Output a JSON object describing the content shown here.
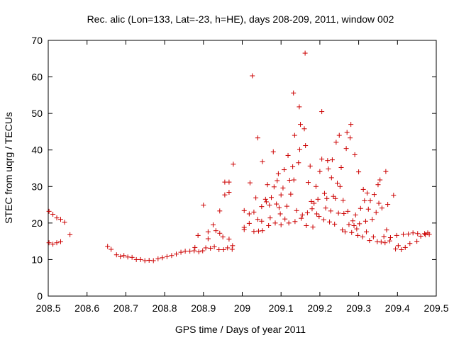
{
  "chart_data": {
    "type": "scatter",
    "title": "Rec. alic (Lon=133, Lat=-23, h=HE), days 208-209, 2011, window 002",
    "xlabel": "GPS time / Days of year 2011",
    "ylabel": "STEC from uqrg / TECUs",
    "xlim": [
      208.5,
      209.5
    ],
    "ylim": [
      0,
      70
    ],
    "xticks": [
      208.5,
      208.6,
      208.7,
      208.8,
      208.9,
      209.0,
      209.1,
      209.2,
      209.3,
      209.4,
      209.5
    ],
    "xtick_labels": [
      "208.5",
      "208.6",
      "208.7",
      "208.8",
      "208.9",
      "209",
      "209.1",
      "209.2",
      "209.3",
      "209.4",
      "209.5"
    ],
    "yticks": [
      0,
      10,
      20,
      30,
      40,
      50,
      60,
      70
    ],
    "ytick_labels": [
      "0",
      "10",
      "20",
      "30",
      "40",
      "50",
      "60",
      "70"
    ],
    "marker": "+",
    "color": "#cc0000",
    "grid": false,
    "series": [
      {
        "name": "STEC",
        "points": [
          [
            208.502,
            23.2
          ],
          [
            208.512,
            22.4
          ],
          [
            208.522,
            21.4
          ],
          [
            208.532,
            21.0
          ],
          [
            208.542,
            20.2
          ],
          [
            208.556,
            16.8
          ],
          [
            208.502,
            14.6
          ],
          [
            208.512,
            14.2
          ],
          [
            208.522,
            14.6
          ],
          [
            208.532,
            14.9
          ],
          [
            208.653,
            13.6
          ],
          [
            208.662,
            12.8
          ],
          [
            208.676,
            11.3
          ],
          [
            208.686,
            10.8
          ],
          [
            208.695,
            11.1
          ],
          [
            208.705,
            10.7
          ],
          [
            208.716,
            10.6
          ],
          [
            208.727,
            10.0
          ],
          [
            208.738,
            10.0
          ],
          [
            208.749,
            9.7
          ],
          [
            208.76,
            9.8
          ],
          [
            208.771,
            9.7
          ],
          [
            208.783,
            10.2
          ],
          [
            208.794,
            10.5
          ],
          [
            208.806,
            10.8
          ],
          [
            208.818,
            11.1
          ],
          [
            208.83,
            11.5
          ],
          [
            208.842,
            12.0
          ],
          [
            208.853,
            12.3
          ],
          [
            208.865,
            12.3
          ],
          [
            208.876,
            12.4
          ],
          [
            208.878,
            13.3
          ],
          [
            208.888,
            12.1
          ],
          [
            208.898,
            12.4
          ],
          [
            208.906,
            13.2
          ],
          [
            208.918,
            13.1
          ],
          [
            208.928,
            13.5
          ],
          [
            208.94,
            12.7
          ],
          [
            208.952,
            12.7
          ],
          [
            208.962,
            13.2
          ],
          [
            208.974,
            12.8
          ],
          [
            208.975,
            13.8
          ],
          [
            208.886,
            16.6
          ],
          [
            208.9,
            24.9
          ],
          [
            208.912,
            15.7
          ],
          [
            208.912,
            17.6
          ],
          [
            208.925,
            19.5
          ],
          [
            208.932,
            17.9
          ],
          [
            208.942,
            17.2
          ],
          [
            208.942,
            23.3
          ],
          [
            208.95,
            16.2
          ],
          [
            208.955,
            27.7
          ],
          [
            208.955,
            31.2
          ],
          [
            208.966,
            31.2
          ],
          [
            208.966,
            28.4
          ],
          [
            208.966,
            15.6
          ],
          [
            208.977,
            36.1
          ],
          [
            209.005,
            18.2
          ],
          [
            209.005,
            18.8
          ],
          [
            209.005,
            23.4
          ],
          [
            209.018,
            22.5
          ],
          [
            209.018,
            19.9
          ],
          [
            209.02,
            31.0
          ],
          [
            209.026,
            60.3
          ],
          [
            209.03,
            17.7
          ],
          [
            209.03,
            23.0
          ],
          [
            209.035,
            26.9
          ],
          [
            209.04,
            43.3
          ],
          [
            209.04,
            21.0
          ],
          [
            209.042,
            17.8
          ],
          [
            209.05,
            24.5
          ],
          [
            209.05,
            20.5
          ],
          [
            209.052,
            36.8
          ],
          [
            209.052,
            17.9
          ],
          [
            209.06,
            26.5
          ],
          [
            209.062,
            25.8
          ],
          [
            209.065,
            30.5
          ],
          [
            209.068,
            19.3
          ],
          [
            209.07,
            24.9
          ],
          [
            209.072,
            21.4
          ],
          [
            209.075,
            27.0
          ],
          [
            209.08,
            39.5
          ],
          [
            209.082,
            29.9
          ],
          [
            209.085,
            20.0
          ],
          [
            209.088,
            25.2
          ],
          [
            209.09,
            31.6
          ],
          [
            209.093,
            33.5
          ],
          [
            209.095,
            24.2
          ],
          [
            209.098,
            22.5
          ],
          [
            209.1,
            27.7
          ],
          [
            209.1,
            19.5
          ],
          [
            209.105,
            29.6
          ],
          [
            209.108,
            34.6
          ],
          [
            209.11,
            21.1
          ],
          [
            209.115,
            24.6
          ],
          [
            209.118,
            38.5
          ],
          [
            209.12,
            20.0
          ],
          [
            209.122,
            31.7
          ],
          [
            209.125,
            27.9
          ],
          [
            209.13,
            35.4
          ],
          [
            209.132,
            55.6
          ],
          [
            209.133,
            31.8
          ],
          [
            209.135,
            44.0
          ],
          [
            209.136,
            20.4
          ],
          [
            209.14,
            23.4
          ],
          [
            209.145,
            36.5
          ],
          [
            209.147,
            51.8
          ],
          [
            209.148,
            40.1
          ],
          [
            209.15,
            47.0
          ],
          [
            209.152,
            21.3
          ],
          [
            209.155,
            22.2
          ],
          [
            209.16,
            45.8
          ],
          [
            209.162,
            66.5
          ],
          [
            209.163,
            41.2
          ],
          [
            209.165,
            19.3
          ],
          [
            209.168,
            22.8
          ],
          [
            209.17,
            31.1
          ],
          [
            209.175,
            35.6
          ],
          [
            209.178,
            25.9
          ],
          [
            209.18,
            23.9
          ],
          [
            209.182,
            18.9
          ],
          [
            209.185,
            25.4
          ],
          [
            209.19,
            30.0
          ],
          [
            209.192,
            22.5
          ],
          [
            209.195,
            26.5
          ],
          [
            209.198,
            21.8
          ],
          [
            209.2,
            34.1
          ],
          [
            209.205,
            50.5
          ],
          [
            209.205,
            37.5
          ],
          [
            209.21,
            20.9
          ],
          [
            209.212,
            28.1
          ],
          [
            209.215,
            24.1
          ],
          [
            209.218,
            26.7
          ],
          [
            209.22,
            37.1
          ],
          [
            209.222,
            34.8
          ],
          [
            209.225,
            20.3
          ],
          [
            209.228,
            23.3
          ],
          [
            209.23,
            32.4
          ],
          [
            209.232,
            37.3
          ],
          [
            209.235,
            27.3
          ],
          [
            209.238,
            19.7
          ],
          [
            209.24,
            26.7
          ],
          [
            209.242,
            42.1
          ],
          [
            209.245,
            30.9
          ],
          [
            209.248,
            22.7
          ],
          [
            209.25,
            44.0
          ],
          [
            209.252,
            30.0
          ],
          [
            209.255,
            35.2
          ],
          [
            209.258,
            18.1
          ],
          [
            209.26,
            26.2
          ],
          [
            209.262,
            22.6
          ],
          [
            209.265,
            17.6
          ],
          [
            209.268,
            40.4
          ],
          [
            209.27,
            44.8
          ],
          [
            209.272,
            23.2
          ],
          [
            209.275,
            19.6
          ],
          [
            209.278,
            43.3
          ],
          [
            209.28,
            47.0
          ],
          [
            209.282,
            17.4
          ],
          [
            209.285,
            20.6
          ],
          [
            209.288,
            19.3
          ],
          [
            209.29,
            38.7
          ],
          [
            209.292,
            22.2
          ],
          [
            209.295,
            18.4
          ],
          [
            209.298,
            16.6
          ],
          [
            209.3,
            34.0
          ],
          [
            209.302,
            19.8
          ],
          [
            209.305,
            24.0
          ],
          [
            209.31,
            16.2
          ],
          [
            209.312,
            29.2
          ],
          [
            209.315,
            26.1
          ],
          [
            209.318,
            20.5
          ],
          [
            209.32,
            17.6
          ],
          [
            209.322,
            28.2
          ],
          [
            209.325,
            23.8
          ],
          [
            209.328,
            15.2
          ],
          [
            209.33,
            26.1
          ],
          [
            209.335,
            21.0
          ],
          [
            209.338,
            16.2
          ],
          [
            209.34,
            27.8
          ],
          [
            209.345,
            22.9
          ],
          [
            209.348,
            14.9
          ],
          [
            209.35,
            30.5
          ],
          [
            209.352,
            25.4
          ],
          [
            209.355,
            31.8
          ],
          [
            209.358,
            14.8
          ],
          [
            209.36,
            24.1
          ],
          [
            209.365,
            16.3
          ],
          [
            209.368,
            14.6
          ],
          [
            209.37,
            34.1
          ],
          [
            209.372,
            18.1
          ],
          [
            209.375,
            25.1
          ],
          [
            209.38,
            15.1
          ],
          [
            209.382,
            16.0
          ],
          [
            209.39,
            27.6
          ],
          [
            209.395,
            12.9
          ],
          [
            209.398,
            16.6
          ],
          [
            209.402,
            13.8
          ],
          [
            209.41,
            12.7
          ],
          [
            209.415,
            16.9
          ],
          [
            209.42,
            13.3
          ],
          [
            209.428,
            17.0
          ],
          [
            209.432,
            14.4
          ],
          [
            209.44,
            17.3
          ],
          [
            209.45,
            15.0
          ],
          [
            209.452,
            17.1
          ],
          [
            209.46,
            16.4
          ],
          [
            209.47,
            17.1
          ],
          [
            209.472,
            16.8
          ],
          [
            209.478,
            17.3
          ],
          [
            209.482,
            16.9
          ]
        ]
      }
    ]
  }
}
